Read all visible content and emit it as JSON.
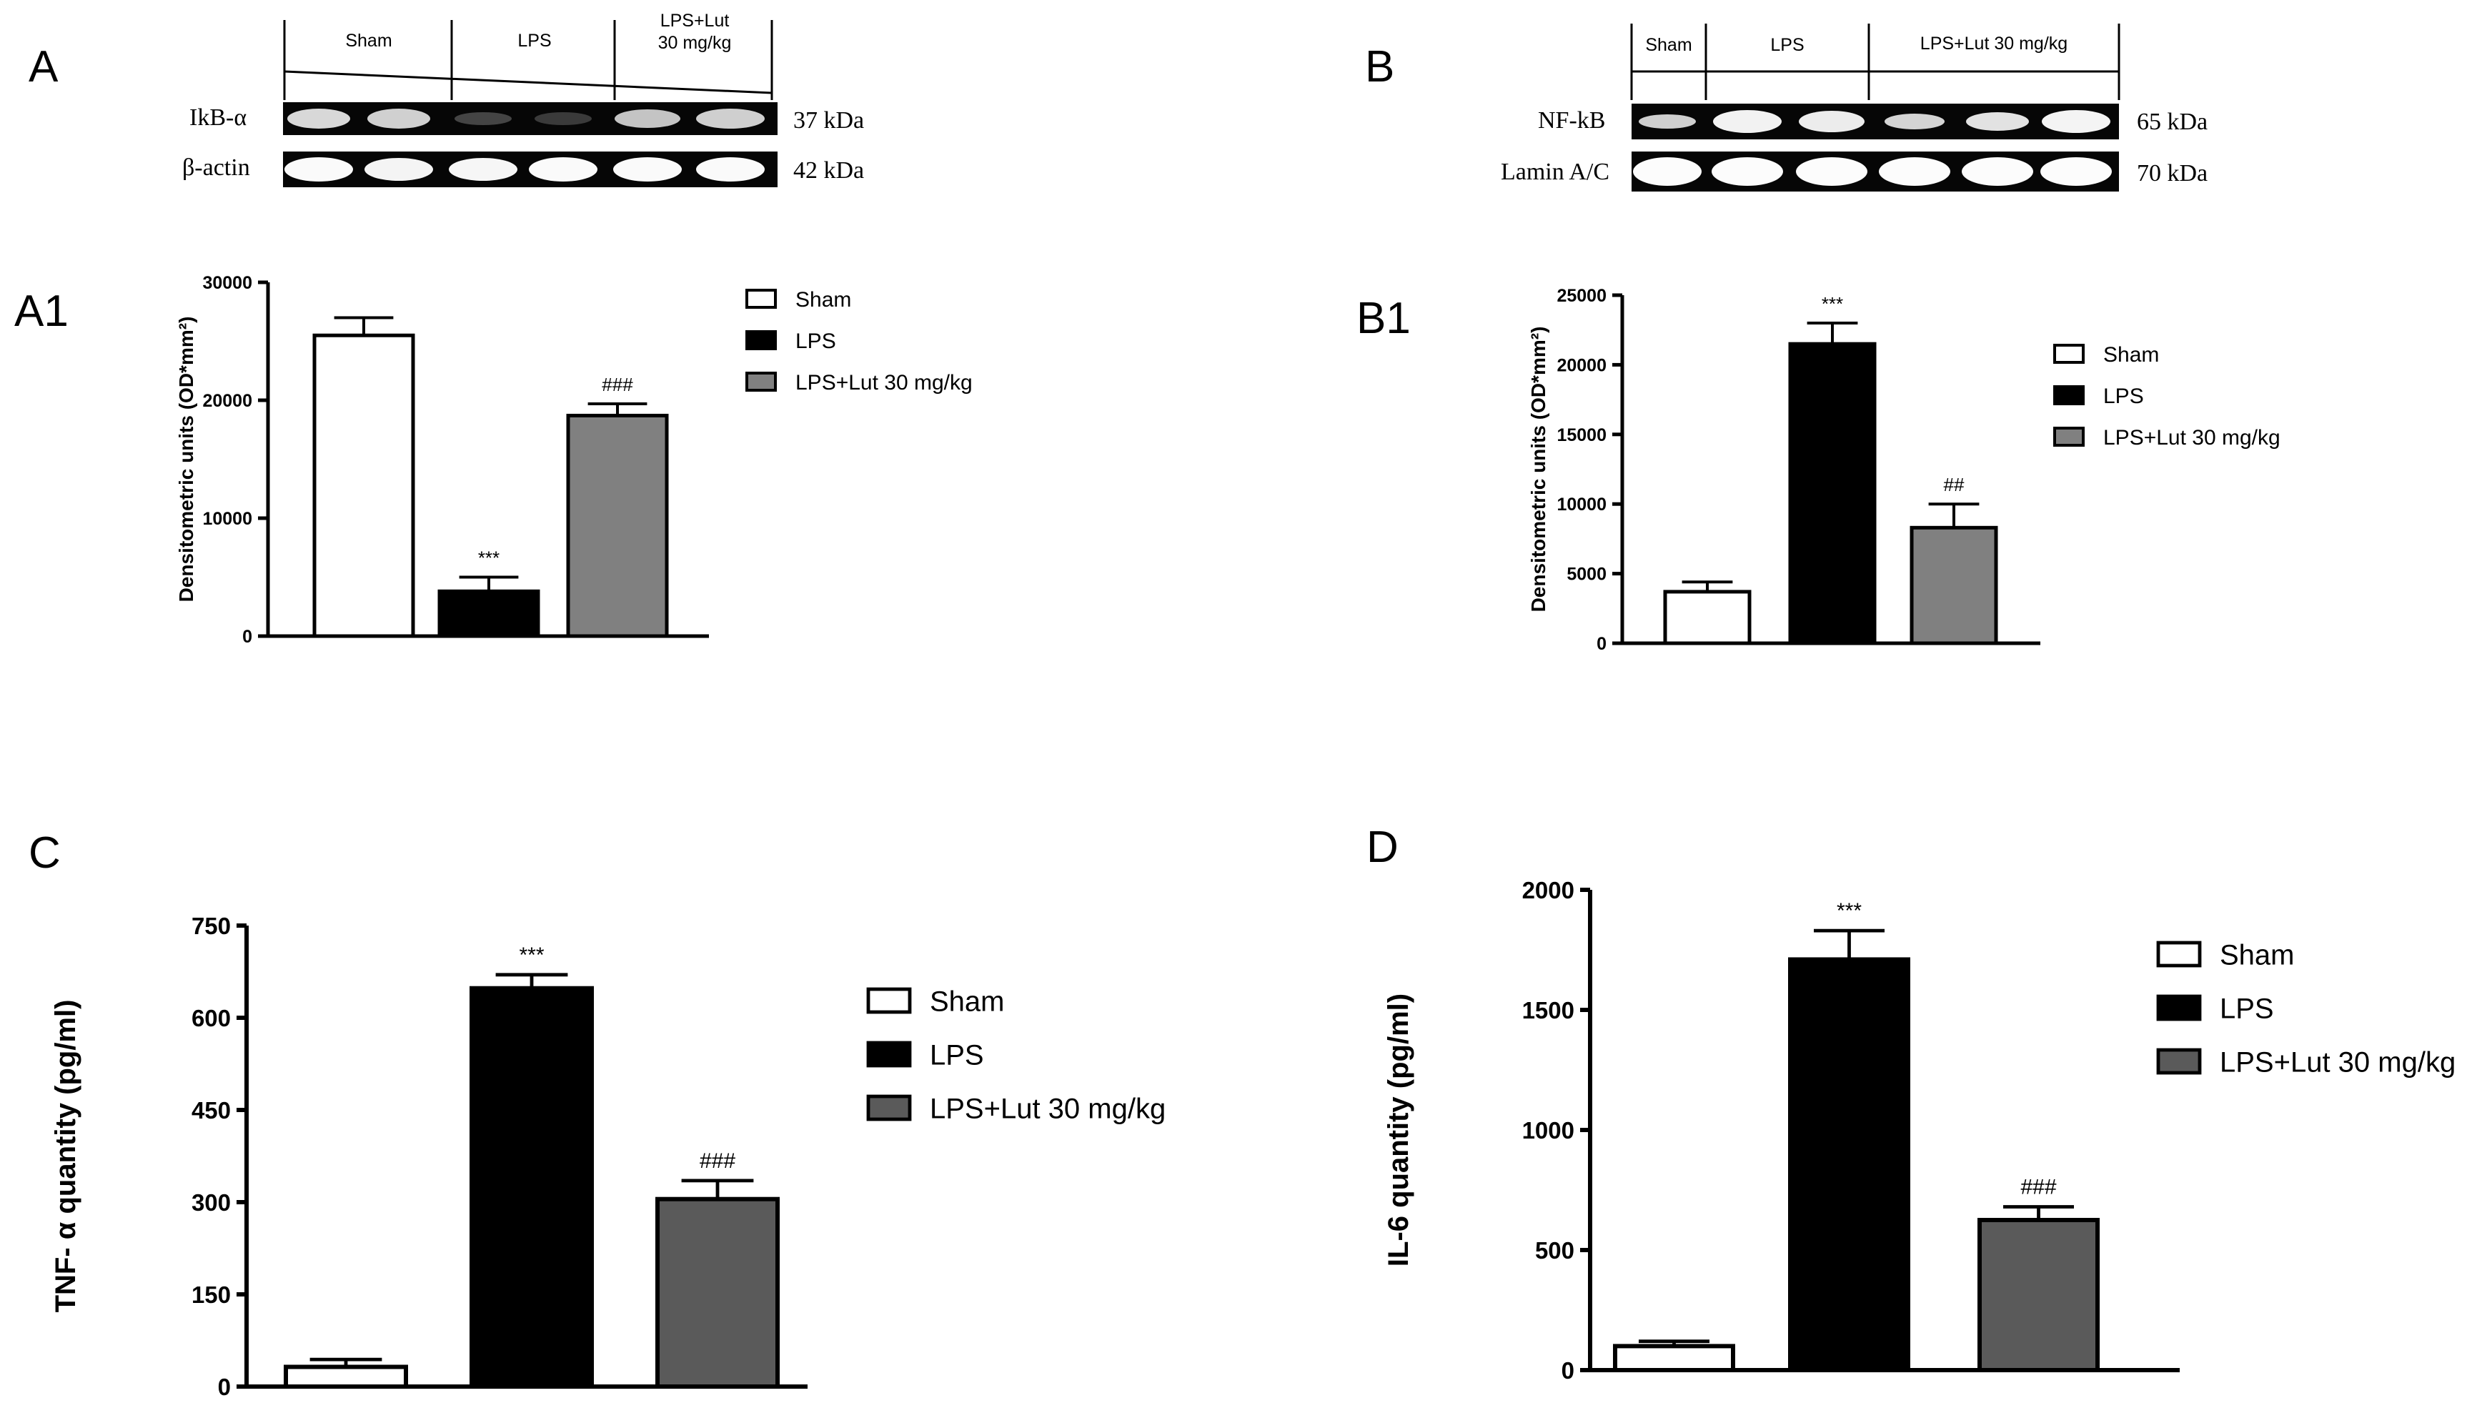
{
  "panels": {
    "A": "A",
    "B": "B",
    "A1": "A1",
    "B1": "B1",
    "C": "C",
    "D": "D"
  },
  "blotA": {
    "groups": [
      "Sham",
      "LPS",
      "LPS+Lut\n30 mg/kg"
    ],
    "rows": [
      {
        "protein": "IkB-α",
        "kda": "37 kDa"
      },
      {
        "protein": "β-actin",
        "kda": "42 kDa"
      }
    ]
  },
  "blotB": {
    "groups": [
      "Sham",
      "LPS",
      "LPS+Lut 30 mg/kg"
    ],
    "rows": [
      {
        "protein": "NF-kB",
        "kda": "65 kDa"
      },
      {
        "protein": "Lamin A/C",
        "kda": "70 kDa"
      }
    ]
  },
  "colors": {
    "sham": "#ffffff",
    "lps": "#000000",
    "lut_light": "#808080",
    "lut_dark": "#5a5a5a"
  },
  "chart_data": [
    {
      "id": "A1",
      "type": "bar",
      "categories": [
        "Sham",
        "LPS",
        "LPS+Lut 30 mg/kg"
      ],
      "values": [
        25500,
        3800,
        18700
      ],
      "errors": [
        1500,
        1200,
        1000
      ],
      "annotations": [
        "",
        "***",
        "###"
      ],
      "ylabel": "Densitometric units (OD*mm²)",
      "ylim": [
        0,
        30000
      ],
      "yticks": [
        0,
        10000,
        20000,
        30000
      ],
      "legend": [
        "Sham",
        "LPS",
        "LPS+Lut 30 mg/kg"
      ]
    },
    {
      "id": "B1",
      "type": "bar",
      "categories": [
        "Sham",
        "LPS",
        "LPS+Lut 30 mg/kg"
      ],
      "values": [
        3700,
        21500,
        8300
      ],
      "errors": [
        700,
        1500,
        1700
      ],
      "annotations": [
        "",
        "***",
        "##"
      ],
      "ylabel": "Densitometric units (OD*mm²)",
      "ylim": [
        0,
        25000
      ],
      "yticks": [
        0,
        5000,
        10000,
        15000,
        20000,
        25000
      ],
      "legend": [
        "Sham",
        "LPS",
        "LPS+Lut 30 mg/kg"
      ]
    },
    {
      "id": "C",
      "type": "bar",
      "categories": [
        "Sham",
        "LPS",
        "LPS+Lut 30 mg/kg"
      ],
      "values": [
        32,
        648,
        305
      ],
      "errors": [
        12,
        22,
        30
      ],
      "annotations": [
        "",
        "***",
        "###"
      ],
      "ylabel": "TNF- α quantity (pg/ml)",
      "ylim": [
        0,
        750
      ],
      "yticks": [
        0,
        150,
        300,
        450,
        600,
        750
      ],
      "legend": [
        "Sham",
        "LPS",
        "LPS+Lut 30 mg/kg"
      ]
    },
    {
      "id": "D",
      "type": "bar",
      "categories": [
        "Sham",
        "LPS",
        "LPS+Lut 30 mg/kg"
      ],
      "values": [
        100,
        1710,
        625
      ],
      "errors": [
        20,
        120,
        55
      ],
      "annotations": [
        "",
        "***",
        "###"
      ],
      "ylabel": "IL-6 quantity (pg/ml)",
      "ylim": [
        0,
        2000
      ],
      "yticks": [
        0,
        500,
        1000,
        1500,
        2000
      ],
      "legend": [
        "Sham",
        "LPS",
        "LPS+Lut 30 mg/kg"
      ]
    }
  ]
}
